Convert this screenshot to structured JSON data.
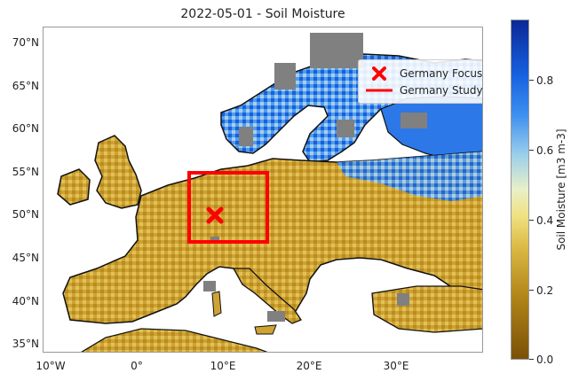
{
  "title": "2022-05-01 - Soil Moisture",
  "legend": {
    "point_label": "Germany Focus Point",
    "area_label": "Germany Study Area"
  },
  "axes": {
    "y_ticks": [
      "70°N",
      "65°N",
      "60°N",
      "55°N",
      "50°N",
      "45°N",
      "40°N",
      "35°N"
    ],
    "x_ticks": [
      "10°W",
      "0°",
      "10°E",
      "20°E",
      "30°E"
    ]
  },
  "colorbar": {
    "label": "Soil Moisture [m3 m-3]",
    "ticks": [
      "0.0",
      "0.2",
      "0.4",
      "0.6",
      "0.8"
    ]
  },
  "colors": {
    "dry": "#8a6010",
    "mid": "#d8b640",
    "wet": "#1a66e6",
    "very_wet": "#0a2896",
    "nodata": "#808080",
    "study_area": "#ff0000"
  },
  "map": {
    "lon_range": [
      -11,
      40
    ],
    "lat_range": [
      34,
      72
    ],
    "focus_point": {
      "lon": 9,
      "lat": 50
    },
    "study_area": {
      "lon_min": 6,
      "lon_max": 15,
      "lat_min": 47,
      "lat_max": 55
    }
  }
}
